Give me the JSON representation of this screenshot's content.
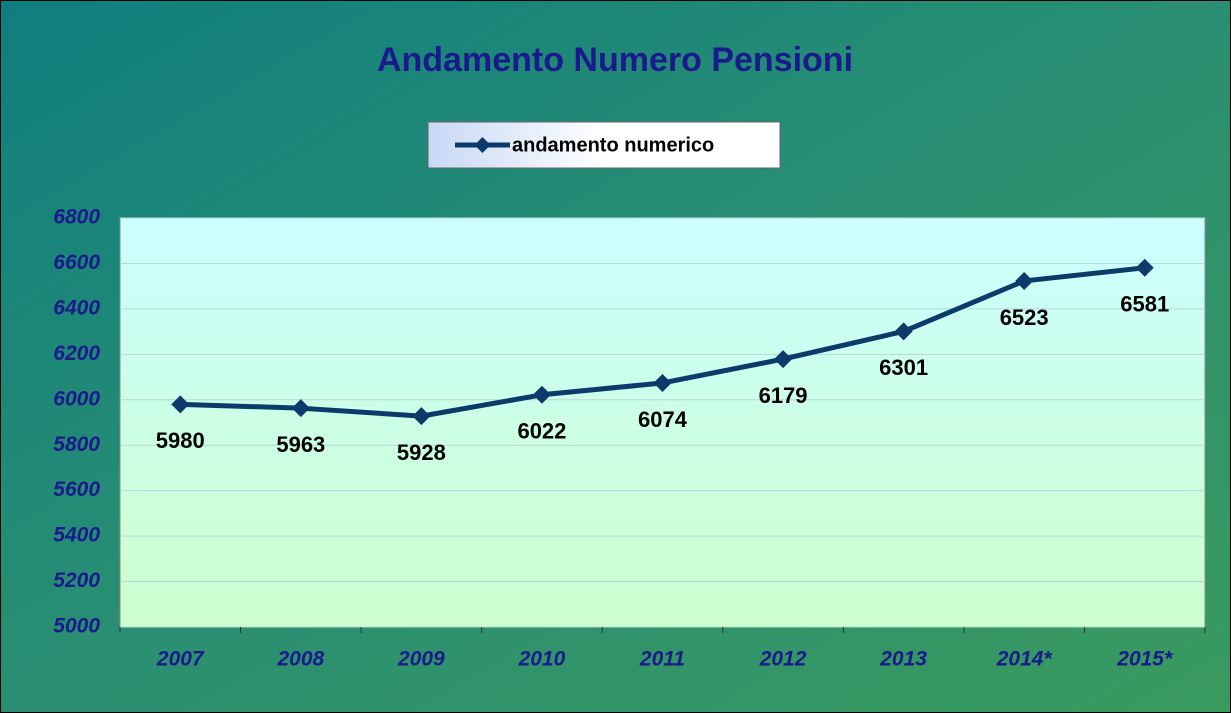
{
  "chart_data": {
    "type": "line",
    "title": "Andamento Numero Pensioni",
    "categories": [
      "2007",
      "2008",
      "2009",
      "2010",
      "2011",
      "2012",
      "2013",
      "2014*",
      "2015*"
    ],
    "series": [
      {
        "name": "andamento numerico",
        "color": "#0b3a6b",
        "values": [
          5980,
          5963,
          5928,
          6022,
          6074,
          6179,
          6301,
          6523,
          6581
        ]
      }
    ],
    "ylim": [
      5000,
      6800
    ],
    "yticks": [
      5000,
      5200,
      5400,
      5600,
      5800,
      6000,
      6200,
      6400,
      6600,
      6800
    ],
    "grid": true,
    "legend": "top"
  }
}
